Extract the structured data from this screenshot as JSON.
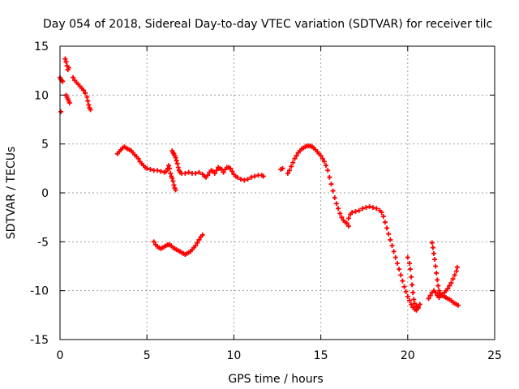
{
  "chart_data": {
    "type": "scatter",
    "title": "Day 054 of 2018, Sidereal Day-to-day VTEC variation (SDTVAR) for receiver tilc",
    "xlabel": "GPS time / hours",
    "ylabel": "SDTVAR / TECUs",
    "xlim": [
      0,
      25
    ],
    "ylim": [
      -15,
      15
    ],
    "xticks": [
      "0",
      "5",
      "10",
      "15",
      "20",
      "25"
    ],
    "yticks": [
      "-15",
      "-10",
      "-5",
      "0",
      "5",
      "10",
      "15"
    ],
    "grid": true,
    "marker": "+",
    "colors": {
      "series": "#ff0000",
      "grid": "#a0a0a0",
      "axis": "#000000"
    },
    "series": [
      {
        "name": "",
        "points": [
          [
            0.0,
            11.8
          ],
          [
            0.05,
            11.6
          ],
          [
            0.1,
            11.5
          ],
          [
            0.15,
            11.4
          ],
          [
            0.05,
            8.3
          ],
          [
            0.3,
            13.7
          ],
          [
            0.35,
            13.4
          ],
          [
            0.4,
            13.0
          ],
          [
            0.45,
            12.6
          ],
          [
            0.5,
            12.8
          ],
          [
            0.35,
            10.0
          ],
          [
            0.4,
            9.8
          ],
          [
            0.45,
            9.6
          ],
          [
            0.5,
            9.4
          ],
          [
            0.55,
            9.2
          ],
          [
            0.75,
            11.8
          ],
          [
            0.85,
            11.5
          ],
          [
            0.95,
            11.3
          ],
          [
            1.05,
            11.1
          ],
          [
            1.15,
            10.9
          ],
          [
            1.25,
            10.7
          ],
          [
            1.35,
            10.5
          ],
          [
            1.45,
            10.2
          ],
          [
            1.55,
            9.8
          ],
          [
            1.6,
            9.4
          ],
          [
            1.65,
            9.0
          ],
          [
            1.7,
            8.7
          ],
          [
            1.75,
            8.5
          ],
          [
            3.3,
            4.0
          ],
          [
            3.4,
            4.2
          ],
          [
            3.5,
            4.4
          ],
          [
            3.6,
            4.6
          ],
          [
            3.7,
            4.7
          ],
          [
            3.8,
            4.6
          ],
          [
            3.9,
            4.5
          ],
          [
            4.0,
            4.4
          ],
          [
            4.1,
            4.3
          ],
          [
            4.2,
            4.1
          ],
          [
            4.3,
            3.9
          ],
          [
            4.4,
            3.7
          ],
          [
            4.5,
            3.5
          ],
          [
            4.6,
            3.2
          ],
          [
            4.7,
            3.0
          ],
          [
            4.8,
            2.8
          ],
          [
            4.9,
            2.6
          ],
          [
            5.0,
            2.5
          ],
          [
            5.2,
            2.4
          ],
          [
            5.4,
            2.3
          ],
          [
            5.6,
            2.3
          ],
          [
            5.8,
            2.2
          ],
          [
            6.0,
            2.1
          ],
          [
            6.1,
            2.2
          ],
          [
            6.2,
            2.5
          ],
          [
            6.25,
            2.8
          ],
          [
            6.3,
            2.5
          ],
          [
            6.35,
            2.0
          ],
          [
            6.4,
            1.7
          ],
          [
            6.45,
            1.5
          ],
          [
            6.5,
            1.2
          ],
          [
            6.55,
            0.8
          ],
          [
            6.6,
            0.5
          ],
          [
            6.65,
            0.3
          ],
          [
            6.45,
            4.3
          ],
          [
            6.5,
            4.1
          ],
          [
            6.55,
            4.0
          ],
          [
            6.6,
            3.8
          ],
          [
            6.65,
            3.6
          ],
          [
            6.7,
            3.3
          ],
          [
            6.75,
            3.0
          ],
          [
            6.8,
            2.6
          ],
          [
            6.85,
            2.3
          ],
          [
            6.9,
            2.1
          ],
          [
            7.0,
            2.0
          ],
          [
            7.2,
            2.0
          ],
          [
            7.4,
            2.1
          ],
          [
            7.6,
            2.0
          ],
          [
            7.8,
            2.0
          ],
          [
            8.0,
            2.1
          ],
          [
            8.2,
            1.9
          ],
          [
            8.3,
            1.7
          ],
          [
            8.4,
            1.6
          ],
          [
            8.5,
            1.8
          ],
          [
            8.6,
            2.1
          ],
          [
            8.7,
            2.3
          ],
          [
            8.8,
            2.2
          ],
          [
            8.9,
            2.0
          ],
          [
            9.0,
            2.3
          ],
          [
            9.1,
            2.6
          ],
          [
            9.2,
            2.5
          ],
          [
            9.3,
            2.4
          ],
          [
            9.4,
            2.1
          ],
          [
            9.5,
            2.4
          ],
          [
            9.6,
            2.6
          ],
          [
            9.7,
            2.6
          ],
          [
            9.8,
            2.5
          ],
          [
            9.9,
            2.2
          ],
          [
            10.0,
            1.9
          ],
          [
            10.1,
            1.7
          ],
          [
            10.2,
            1.6
          ],
          [
            10.4,
            1.4
          ],
          [
            10.6,
            1.3
          ],
          [
            10.8,
            1.4
          ],
          [
            11.0,
            1.6
          ],
          [
            11.2,
            1.7
          ],
          [
            11.4,
            1.8
          ],
          [
            11.6,
            1.8
          ],
          [
            11.7,
            1.7
          ],
          [
            5.4,
            -5.0
          ],
          [
            5.5,
            -5.3
          ],
          [
            5.6,
            -5.5
          ],
          [
            5.7,
            -5.6
          ],
          [
            5.8,
            -5.7
          ],
          [
            5.9,
            -5.6
          ],
          [
            6.0,
            -5.5
          ],
          [
            6.1,
            -5.4
          ],
          [
            6.2,
            -5.3
          ],
          [
            6.3,
            -5.3
          ],
          [
            6.4,
            -5.4
          ],
          [
            6.5,
            -5.6
          ],
          [
            6.6,
            -5.7
          ],
          [
            6.7,
            -5.8
          ],
          [
            6.8,
            -5.9
          ],
          [
            6.9,
            -6.0
          ],
          [
            7.0,
            -6.1
          ],
          [
            7.1,
            -6.2
          ],
          [
            7.2,
            -6.3
          ],
          [
            7.3,
            -6.2
          ],
          [
            7.4,
            -6.1
          ],
          [
            7.5,
            -6.0
          ],
          [
            7.6,
            -5.8
          ],
          [
            7.7,
            -5.6
          ],
          [
            7.8,
            -5.4
          ],
          [
            7.9,
            -5.1
          ],
          [
            8.0,
            -4.8
          ],
          [
            8.1,
            -4.5
          ],
          [
            8.2,
            -4.3
          ],
          [
            12.7,
            2.4
          ],
          [
            12.8,
            2.5
          ],
          [
            13.1,
            2.0
          ],
          [
            13.2,
            2.3
          ],
          [
            13.3,
            2.7
          ],
          [
            13.4,
            3.1
          ],
          [
            13.5,
            3.5
          ],
          [
            13.6,
            3.8
          ],
          [
            13.7,
            4.1
          ],
          [
            13.8,
            4.3
          ],
          [
            13.9,
            4.5
          ],
          [
            14.0,
            4.6
          ],
          [
            14.1,
            4.7
          ],
          [
            14.2,
            4.8
          ],
          [
            14.3,
            4.8
          ],
          [
            14.4,
            4.8
          ],
          [
            14.5,
            4.7
          ],
          [
            14.6,
            4.6
          ],
          [
            14.7,
            4.4
          ],
          [
            14.8,
            4.2
          ],
          [
            14.9,
            4.0
          ],
          [
            15.0,
            3.8
          ],
          [
            15.1,
            3.5
          ],
          [
            15.2,
            3.2
          ],
          [
            15.3,
            2.8
          ],
          [
            15.4,
            2.3
          ],
          [
            15.5,
            1.6
          ],
          [
            15.6,
            0.9
          ],
          [
            15.7,
            0.2
          ],
          [
            15.8,
            -0.5
          ],
          [
            15.9,
            -1.1
          ],
          [
            16.0,
            -1.6
          ],
          [
            16.1,
            -2.1
          ],
          [
            16.2,
            -2.5
          ],
          [
            16.3,
            -2.8
          ],
          [
            16.4,
            -3.0
          ],
          [
            16.5,
            -3.1
          ],
          [
            16.6,
            -3.4
          ],
          [
            16.6,
            -2.6
          ],
          [
            16.7,
            -2.2
          ],
          [
            16.8,
            -2.0
          ],
          [
            17.0,
            -1.9
          ],
          [
            17.2,
            -1.8
          ],
          [
            17.4,
            -1.6
          ],
          [
            17.6,
            -1.5
          ],
          [
            17.8,
            -1.4
          ],
          [
            18.0,
            -1.5
          ],
          [
            18.2,
            -1.6
          ],
          [
            18.4,
            -1.8
          ],
          [
            18.5,
            -2.0
          ],
          [
            18.6,
            -2.4
          ],
          [
            18.7,
            -3.0
          ],
          [
            18.8,
            -3.6
          ],
          [
            18.9,
            -4.2
          ],
          [
            19.0,
            -4.8
          ],
          [
            19.1,
            -5.4
          ],
          [
            19.2,
            -6.0
          ],
          [
            19.3,
            -6.6
          ],
          [
            19.4,
            -7.2
          ],
          [
            19.5,
            -7.8
          ],
          [
            19.6,
            -8.4
          ],
          [
            19.7,
            -9.0
          ],
          [
            19.8,
            -9.6
          ],
          [
            19.9,
            -10.1
          ],
          [
            20.0,
            -10.6
          ],
          [
            20.1,
            -11.0
          ],
          [
            20.2,
            -11.4
          ],
          [
            20.3,
            -11.7
          ],
          [
            20.4,
            -11.9
          ],
          [
            20.5,
            -12.0
          ],
          [
            20.6,
            -11.8
          ],
          [
            20.7,
            -11.4
          ],
          [
            20.0,
            -6.6
          ],
          [
            20.1,
            -7.2
          ],
          [
            20.15,
            -7.8
          ],
          [
            20.2,
            -8.6
          ],
          [
            20.25,
            -9.4
          ],
          [
            20.3,
            -10.2
          ],
          [
            20.35,
            -10.9
          ],
          [
            20.4,
            -11.3
          ],
          [
            20.5,
            -11.6
          ],
          [
            20.6,
            -11.7
          ],
          [
            21.4,
            -5.1
          ],
          [
            21.45,
            -5.6
          ],
          [
            21.5,
            -6.2
          ],
          [
            21.55,
            -6.8
          ],
          [
            21.6,
            -7.5
          ],
          [
            21.65,
            -8.2
          ],
          [
            21.7,
            -8.9
          ],
          [
            21.75,
            -9.5
          ],
          [
            21.8,
            -10.0
          ],
          [
            21.85,
            -10.3
          ],
          [
            21.9,
            -10.4
          ],
          [
            22.0,
            -10.5
          ],
          [
            22.1,
            -10.6
          ],
          [
            22.2,
            -10.7
          ],
          [
            22.3,
            -10.8
          ],
          [
            22.4,
            -10.9
          ],
          [
            22.5,
            -11.0
          ],
          [
            22.6,
            -11.2
          ],
          [
            22.7,
            -11.3
          ],
          [
            22.8,
            -11.4
          ],
          [
            22.9,
            -11.5
          ],
          [
            21.2,
            -10.8
          ],
          [
            21.3,
            -10.5
          ],
          [
            21.4,
            -10.2
          ],
          [
            21.5,
            -10.0
          ],
          [
            21.6,
            -10.2
          ],
          [
            21.7,
            -10.5
          ],
          [
            21.8,
            -10.7
          ],
          [
            22.0,
            -10.5
          ],
          [
            22.1,
            -10.2
          ],
          [
            22.2,
            -10.0
          ],
          [
            22.3,
            -9.8
          ],
          [
            22.4,
            -9.5
          ],
          [
            22.5,
            -9.2
          ],
          [
            22.6,
            -8.8
          ],
          [
            22.7,
            -8.4
          ],
          [
            22.8,
            -8.0
          ],
          [
            22.85,
            -7.6
          ]
        ]
      }
    ]
  }
}
